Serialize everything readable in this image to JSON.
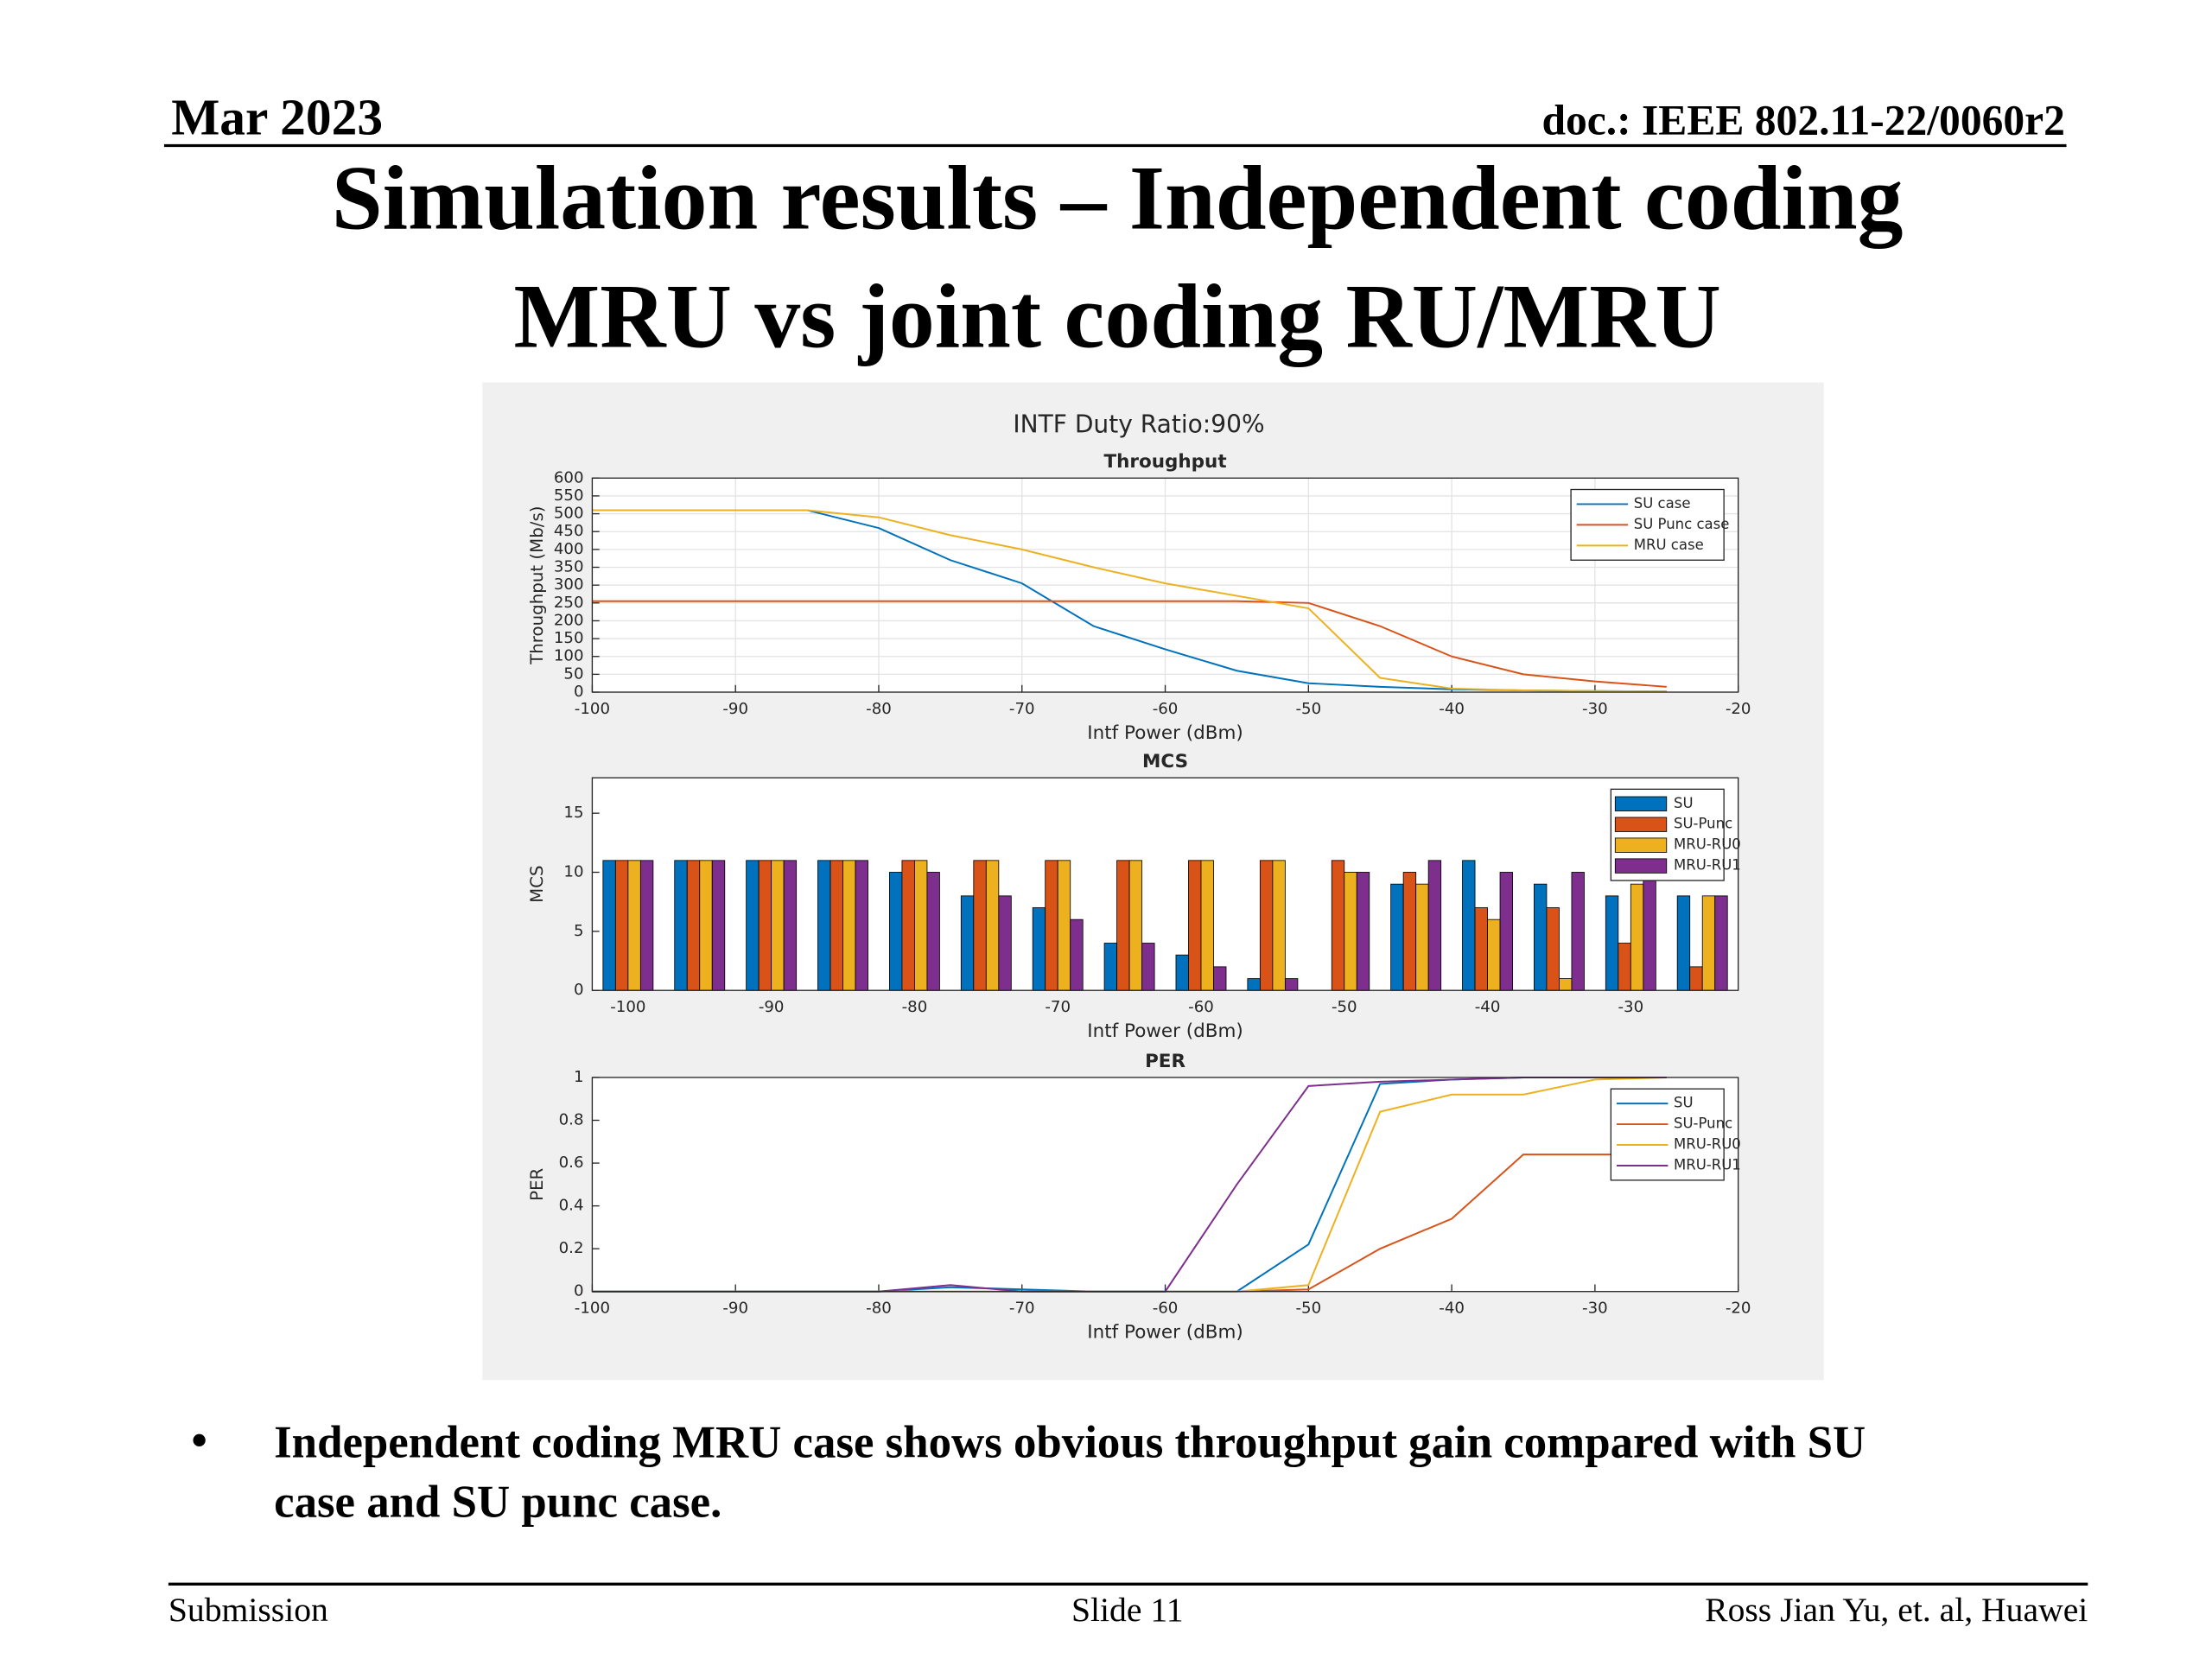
{
  "header": {
    "date": "Mar 2023",
    "doc": "doc.: IEEE 802.11-22/0060r2"
  },
  "title": [
    "Simulation results – Independent coding",
    "MRU vs joint coding RU/MRU"
  ],
  "figure_title": "INTF Duty Ratio:90%",
  "chart_data": [
    {
      "type": "line",
      "title": "Throughput",
      "x_label": "Intf Power (dBm)",
      "y_label": "Throughput (Mb/s)",
      "x": [
        -100,
        -95,
        -90,
        -85,
        -80,
        -75,
        -70,
        -65,
        -60,
        -55,
        -50,
        -45,
        -40,
        -35,
        -30,
        -25
      ],
      "series": [
        {
          "name": "SU case",
          "color": "#0072BD",
          "values": [
            510,
            510,
            510,
            510,
            460,
            370,
            305,
            185,
            120,
            60,
            25,
            15,
            8,
            5,
            3,
            2
          ]
        },
        {
          "name": "SU Punc case",
          "color": "#D95319",
          "values": [
            255,
            255,
            255,
            255,
            255,
            255,
            255,
            255,
            255,
            255,
            250,
            185,
            100,
            50,
            30,
            15
          ]
        },
        {
          "name": "MRU case",
          "color": "#EDB120",
          "values": [
            510,
            510,
            510,
            510,
            490,
            440,
            400,
            350,
            305,
            270,
            235,
            40,
            10,
            5,
            3,
            2
          ]
        }
      ],
      "xlim": [
        -100,
        -20
      ],
      "xticks": [
        -100,
        -90,
        -80,
        -70,
        -60,
        -50,
        -40,
        -30,
        -20
      ],
      "ylim": [
        0,
        600
      ],
      "yticks": [
        0,
        50,
        100,
        150,
        200,
        250,
        300,
        350,
        400,
        450,
        500,
        550,
        600
      ],
      "grid": true,
      "legend": "northeast"
    },
    {
      "type": "bar",
      "title": "MCS",
      "x_label": "Intf Power (dBm)",
      "y_label": "MCS",
      "categories": [
        -100,
        null,
        -90,
        null,
        -80,
        null,
        -70,
        null,
        -60,
        null,
        -50,
        null,
        -40,
        null,
        -30,
        null
      ],
      "series": [
        {
          "name": "SU",
          "color": "#0072BD",
          "values": [
            11,
            11,
            11,
            11,
            10,
            8,
            7,
            4,
            3,
            1,
            0,
            9,
            11,
            9,
            8,
            8
          ]
        },
        {
          "name": "SU-Punc",
          "color": "#D95319",
          "values": [
            11,
            11,
            11,
            11,
            11,
            11,
            11,
            11,
            11,
            11,
            11,
            10,
            7,
            7,
            4,
            2
          ]
        },
        {
          "name": "MRU-RU0",
          "color": "#EDB120",
          "values": [
            11,
            11,
            11,
            11,
            11,
            11,
            11,
            11,
            11,
            11,
            10,
            9,
            6,
            1,
            9,
            8
          ]
        },
        {
          "name": "MRU-RU1",
          "color": "#7E2F8E",
          "values": [
            11,
            11,
            11,
            11,
            10,
            8,
            6,
            4,
            2,
            1,
            10,
            11,
            10,
            10,
            10,
            8
          ]
        }
      ],
      "ylim": [
        0,
        18
      ],
      "yticks": [
        0,
        5,
        10,
        15
      ],
      "grid": false,
      "legend": "northeast"
    },
    {
      "type": "line",
      "title": "PER",
      "x_label": "Intf Power (dBm)",
      "y_label": "PER",
      "x": [
        -100,
        -95,
        -90,
        -85,
        -80,
        -75,
        -70,
        -65,
        -60,
        -55,
        -50,
        -45,
        -40,
        -35,
        -30,
        -25
      ],
      "series": [
        {
          "name": "SU",
          "color": "#0072BD",
          "values": [
            0,
            0,
            0,
            0,
            0,
            0.02,
            0.01,
            0,
            0,
            0,
            0.22,
            0.97,
            0.99,
            1,
            1,
            1
          ]
        },
        {
          "name": "SU-Punc",
          "color": "#D95319",
          "values": [
            0,
            0,
            0,
            0,
            0,
            0,
            0,
            0,
            0,
            0,
            0.01,
            0.2,
            0.34,
            0.64,
            0.64,
            0.64
          ]
        },
        {
          "name": "MRU-RU0",
          "color": "#EDB120",
          "values": [
            0,
            0,
            0,
            0,
            0,
            0,
            0,
            0,
            0,
            0,
            0.03,
            0.84,
            0.92,
            0.92,
            0.99,
            1
          ]
        },
        {
          "name": "MRU-RU1",
          "color": "#7E2F8E",
          "values": [
            0,
            0,
            0,
            0,
            0,
            0.03,
            0,
            0,
            0,
            0.5,
            0.96,
            0.98,
            0.99,
            1,
            1,
            1
          ]
        }
      ],
      "xlim": [
        -100,
        -20
      ],
      "xticks": [
        -100,
        -90,
        -80,
        -70,
        -60,
        -50,
        -40,
        -30,
        -20
      ],
      "ylim": [
        0,
        1
      ],
      "yticks": [
        0,
        0.2,
        0.4,
        0.6,
        0.8,
        1
      ],
      "grid": false,
      "legend": "northeast"
    }
  ],
  "bullet": [
    "Independent coding MRU case shows obvious throughput gain compared with SU",
    "case and SU punc case."
  ],
  "footer": {
    "left": "Submission",
    "center": "Slide 11",
    "right": "Ross Jian Yu, et. al, Huawei"
  }
}
